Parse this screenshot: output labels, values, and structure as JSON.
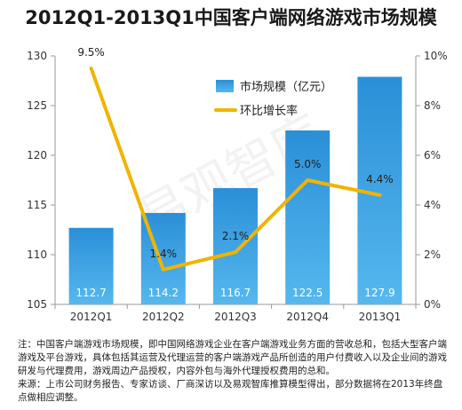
{
  "chart_data": {
    "type": "bar+line",
    "title": "2012Q1-2013Q1中国客户端网络游戏市场规模",
    "categories": [
      "2012Q1",
      "2012Q2",
      "2012Q3",
      "2012Q4",
      "2013Q1"
    ],
    "series": [
      {
        "name": "市场规模（亿元）",
        "type": "bar",
        "axis": "left",
        "values": [
          112.7,
          114.2,
          116.7,
          122.5,
          127.9
        ],
        "labels": [
          "112.7",
          "114.2",
          "116.7",
          "122.5",
          "127.9"
        ]
      },
      {
        "name": "环比增长率",
        "type": "line",
        "axis": "right",
        "values": [
          9.5,
          1.4,
          2.1,
          5.0,
          4.4
        ],
        "labels": [
          "9.5%",
          "1.4%",
          "2.1%",
          "5.0%",
          "4.4%"
        ]
      }
    ],
    "y_left": {
      "min": 105,
      "max": 130,
      "ticks": [
        "105",
        "110",
        "115",
        "120",
        "125",
        "130"
      ]
    },
    "y_right": {
      "min": 0,
      "max": 10,
      "ticks": [
        "0%",
        "2%",
        "4%",
        "6%",
        "8%",
        "10%"
      ]
    },
    "grid": false,
    "legend_position": "top-right",
    "colors": {
      "bar_top": "#2b8fd8",
      "bar_bottom": "#4fb3ec",
      "line": "#f0b400",
      "axis": "#9a9a9a"
    }
  },
  "watermark": "易观智库",
  "notes": [
    "注：中国客户端游戏市场规模，即中国网络游戏企业在客户端游戏业务方面的营收总和，包括大型客户端游戏及平台游戏，具体包括其运营及代理运营的客户端游戏产品所创造的用户付费收入以及企业间的游戏研发与代理费用，游戏周边产品授权，内容外包与海外代理授权费用的总和。",
    "来源：上市公司财务报告、专家访谈、厂商深访以及易观智库推算模型得出，部分数据将在2013年终盘点做相应调整。"
  ]
}
